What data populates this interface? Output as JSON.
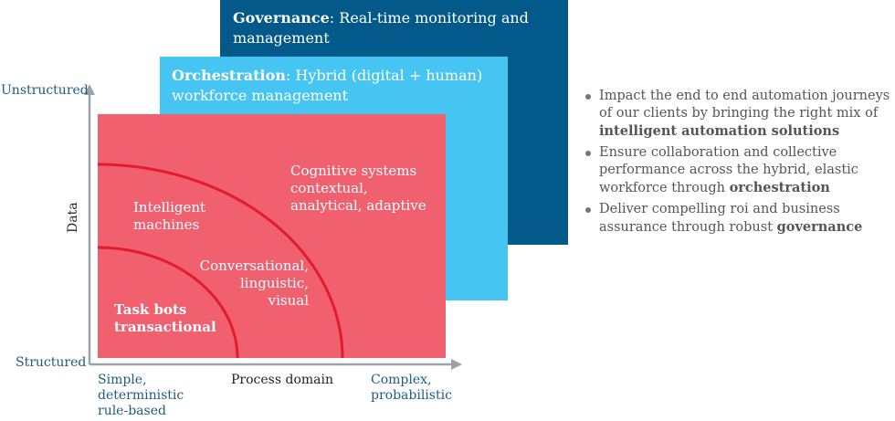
{
  "panels": {
    "governance": {
      "bold": "Governance",
      "rest": ": Real-time monitoring and management"
    },
    "orchestration": {
      "bold": "Orchestration",
      "rest": ": Hybrid (digital + human) workforce management"
    }
  },
  "regions": {
    "intelligent": "Intelligent machines",
    "cognitive": "Cognitive systems contextual, analytical, adaptive",
    "conversational": "Conversational, linguistic, visual",
    "task": "Task bots transactional"
  },
  "axes": {
    "y_top": "Unstructured",
    "y_bottom": "Structured",
    "y_label": "Data",
    "x_left": "Simple, deterministic rule-based",
    "x_label": "Process domain",
    "x_right": "Complex, probabilistic"
  },
  "bullets": [
    {
      "text": "Impact the end to end automation journeys of our clients by bringing the right mix of ",
      "bold": "intelligent automation solutions"
    },
    {
      "text": "Ensure collaboration and collective performance across the hybrid, elastic workforce through ",
      "bold": "orchestration"
    },
    {
      "text": "Deliver compelling roi and business assurance through robust ",
      "bold": "governance"
    }
  ],
  "colors": {
    "governance": "#035a8a",
    "orchestration": "#47c5f2",
    "task": "#f0606f",
    "curve": "#e31b2b"
  }
}
